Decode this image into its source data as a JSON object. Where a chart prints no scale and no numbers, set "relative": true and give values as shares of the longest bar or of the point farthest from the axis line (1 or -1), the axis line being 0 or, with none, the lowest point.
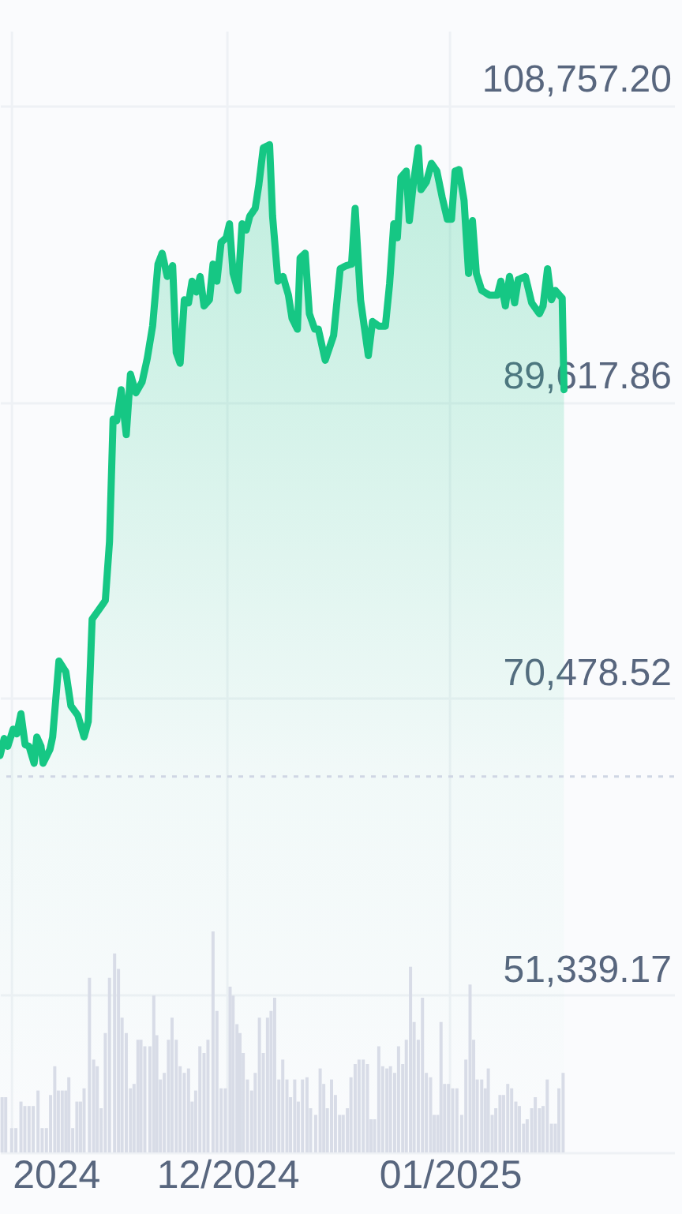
{
  "chart_data": [
    {
      "type": "area",
      "x": [
        "2024-10-30T08:00",
        "2024-10-30T22:00",
        "2024-10-31T10:00",
        "2024-11-01T04:00",
        "2024-11-01T16:00",
        "2024-11-02T06:00",
        "2024-11-02T20:00",
        "2024-11-03T09:00",
        "2024-11-04T02:00",
        "2024-11-04T11:00",
        "2024-11-05T01:00",
        "2024-11-05T08:00",
        "2024-11-06T07:00",
        "2024-11-06T16:00",
        "2024-11-07T13:00",
        "2024-11-08T12:00",
        "2024-11-09T05:00",
        "2024-11-10T04:00",
        "2024-11-11T01:00",
        "2024-11-11T15:00",
        "2024-11-12T04:00",
        "2024-11-13T06:00",
        "2024-11-14T00:00",
        "2024-11-14T14:00",
        "2024-11-15T02:00",
        "2024-11-15T14:00",
        "2024-11-16T05:00",
        "2024-11-16T22:00",
        "2024-11-17T12:00",
        "2024-11-18T06:00",
        "2024-11-19T03:00",
        "2024-11-19T20:00",
        "2024-11-20T14:00",
        "2024-11-21T08:00",
        "2024-11-21T22:00",
        "2024-11-22T15:00",
        "2024-11-23T09:00",
        "2024-11-23T21:00",
        "2024-11-24T10:00",
        "2024-11-25T00:00",
        "2024-11-25T14:00",
        "2024-11-26T02:00",
        "2024-11-26T16:00",
        "2024-11-27T05:00",
        "2024-11-27T18:00",
        "2024-11-28T12:00",
        "2024-11-29T00:00",
        "2024-11-29T13:00",
        "2024-11-30T03:00",
        "2024-11-30T20:00",
        "2024-12-01T07:00",
        "2024-12-01T19:00",
        "2024-12-02T11:00",
        "2024-12-03T01:00",
        "2024-12-03T15:00",
        "2024-12-04T03:00",
        "2024-12-04T21:00",
        "2024-12-05T09:00",
        "2024-12-06T00:00",
        "2024-12-06T21:00",
        "2024-12-07T07:00",
        "2024-12-08T01:00",
        "2024-12-08T18:00",
        "2024-12-09T12:00",
        "2024-12-10T00:00",
        "2024-12-10T18:00",
        "2024-12-11T03:00",
        "2024-12-11T20:00",
        "2024-12-12T10:00",
        "2024-12-13T04:00",
        "2024-12-13T16:00",
        "2024-12-14T15:00",
        "2024-12-15T19:00",
        "2024-12-16T17:00",
        "2024-12-17T13:00",
        "2024-12-18T07:00",
        "2024-12-18T19:00",
        "2024-12-19T13:00",
        "2024-12-20T15:00",
        "2024-12-21T05:00",
        "2024-12-22T02:00",
        "2024-12-23T00:00",
        "2024-12-23T14:00",
        "2024-12-24T04:00",
        "2024-12-24T16:00",
        "2024-12-25T04:00",
        "2024-12-25T22:00",
        "2024-12-26T08:00",
        "2024-12-26T21:00",
        "2024-12-27T14:00",
        "2024-12-27T23:00",
        "2024-12-28T17:00",
        "2024-12-29T10:00",
        "2024-12-30T04:00",
        "2024-12-30T22:00",
        "2024-12-31T15:00",
        "2025-01-01T05:00",
        "2025-01-01T17:00",
        "2025-01-02T06:00",
        "2025-01-02T23:00",
        "2025-01-03T14:00",
        "2025-01-04T03:00",
        "2025-01-04T16:00",
        "2025-01-05T10:00",
        "2025-01-06T12:00",
        "2025-01-07T14:00",
        "2025-01-08T02:00",
        "2025-01-08T17:00",
        "2025-01-09T07:00",
        "2025-01-10T00:00",
        "2025-01-10T12:00",
        "2025-01-11T12:00",
        "2025-01-12T09:00",
        "2025-01-13T11:00",
        "2025-01-13T23:00",
        "2025-01-14T14:00",
        "2025-01-15T03:00",
        "2025-01-15T16:00",
        "2025-01-16T15:00",
        "2025-01-16T21:00"
      ],
      "series": [
        {
          "color": "#16c784",
          "values": [
            66800,
            67900,
            67400,
            68500,
            68200,
            69500,
            67500,
            67400,
            66300,
            68000,
            67400,
            66300,
            67200,
            68000,
            72900,
            72200,
            70000,
            69400,
            68000,
            69000,
            75600,
            76300,
            76800,
            80600,
            88500,
            88400,
            90400,
            87500,
            91400,
            90200,
            90900,
            92400,
            94500,
            98500,
            99200,
            97700,
            98400,
            92800,
            92100,
            96200,
            96000,
            97400,
            96700,
            97700,
            95800,
            96200,
            98500,
            97400,
            99900,
            100200,
            101100,
            97900,
            96800,
            101100,
            100700,
            101600,
            102100,
            103600,
            106000,
            106200,
            101600,
            97400,
            97700,
            96500,
            95000,
            94300,
            98900,
            99200,
            95300,
            94300,
            94300,
            92300,
            93900,
            98200,
            98400,
            98500,
            102100,
            96200,
            92600,
            94800,
            94500,
            94500,
            97200,
            101100,
            100200,
            104100,
            104500,
            101300,
            103600,
            106000,
            103300,
            103800,
            105000,
            104500,
            102800,
            101400,
            101400,
            104500,
            104600,
            102600,
            97900,
            101300,
            97900,
            96800,
            96500,
            96500,
            97400,
            95800,
            97700,
            96000,
            97500,
            97700,
            96000,
            95300,
            95800,
            98200,
            96200,
            96800,
            96300,
            90400
          ]
        }
      ],
      "xlim": [
        "2024-10-30T08:00",
        "2025-02-01T05:00"
      ],
      "xticks": [
        {
          "value": "2024-11-01",
          "label": null
        },
        {
          "value": "2024-12-01",
          "label": null
        },
        {
          "value": "2025-01-01",
          "label": null
        }
      ],
      "ylim": [
        41200,
        113500
      ],
      "yticks": [
        {
          "value": 51339.17,
          "label": "51,339.17"
        },
        {
          "value": 70478.52,
          "label": "70,478.52"
        },
        {
          "value": 89617.86,
          "label": "89,617.86"
        },
        {
          "value": 108757.2,
          "label": "108,757.20"
        }
      ],
      "ref_lines": [
        {
          "axis": "y",
          "value": 65450,
          "color": "#cfd6e4",
          "line_style": "dotted"
        }
      ],
      "grid": true,
      "tick_labels": "y"
    },
    {
      "type": "bar",
      "relative": true,
      "x": [
        "2024-10-30T15:00",
        "2024-10-31T03:00",
        "2024-10-31T23:00",
        "2024-11-01T13:00",
        "2024-11-02T06:00",
        "2024-11-02T19:00",
        "2024-11-03T09:00",
        "2024-11-03T23:00",
        "2024-11-04T15:00",
        "2024-11-05T05:00",
        "2024-11-05T19:00",
        "2024-11-06T09:00",
        "2024-11-06T23:00",
        "2024-11-07T11:00",
        "2024-11-08T00:00",
        "2024-11-08T12:00",
        "2024-11-08T22:00",
        "2024-11-09T11:00",
        "2024-11-10T01:00",
        "2024-11-10T13:00",
        "2024-11-11T01:00",
        "2024-11-11T19:00",
        "2024-11-12T09:00",
        "2024-11-12T21:00",
        "2024-11-13T10:00",
        "2024-11-14T00:00",
        "2024-11-14T14:00",
        "2024-11-15T07:00",
        "2024-11-15T20:00",
        "2024-11-16T08:00",
        "2024-11-16T22:00",
        "2024-11-17T12:00",
        "2024-11-18T00:00",
        "2024-11-18T13:00",
        "2024-11-18T23:00",
        "2024-11-19T12:00",
        "2024-11-20T05:00",
        "2024-11-20T18:00",
        "2024-11-21T04:00",
        "2024-11-21T16:00",
        "2024-11-22T05:00",
        "2024-11-22T19:00",
        "2024-11-23T07:00",
        "2024-11-23T21:00",
        "2024-11-24T10:00",
        "2024-11-25T00:00",
        "2024-11-25T14:00",
        "2024-11-26T02:00",
        "2024-11-26T14:00",
        "2024-11-27T04:00",
        "2024-11-27T18:00",
        "2024-11-28T07:00",
        "2024-11-29T00:00",
        "2024-11-29T13:00",
        "2024-11-30T03:00",
        "2024-11-30T17:00",
        "2024-12-01T09:00",
        "2024-12-01T19:00",
        "2024-12-02T08:00",
        "2024-12-02T18:00",
        "2024-12-03T05:00",
        "2024-12-03T19:00",
        "2024-12-04T09:00",
        "2024-12-04T21:00",
        "2024-12-05T11:00",
        "2024-12-06T00:00",
        "2024-12-06T14:00",
        "2024-12-07T02:00",
        "2024-12-07T14:00",
        "2024-12-08T04:00",
        "2024-12-08T17:00",
        "2024-12-09T07:00",
        "2024-12-09T19:00",
        "2024-12-10T09:00",
        "2024-12-10T21:00",
        "2024-12-11T11:00",
        "2024-12-12T02:00",
        "2024-12-12T14:00",
        "2024-12-13T07:00",
        "2024-12-13T22:00",
        "2024-12-14T10:00",
        "2024-12-14T22:00",
        "2024-12-15T12:00",
        "2024-12-16T01:00",
        "2024-12-16T15:00",
        "2024-12-17T03:00",
        "2024-12-17T17:00",
        "2024-12-18T05:00",
        "2024-12-18T19:00",
        "2024-12-19T08:00",
        "2024-12-19T22:00",
        "2024-12-20T12:00",
        "2024-12-21T00:00",
        "2024-12-21T12:00",
        "2024-12-22T02:00",
        "2024-12-22T15:00",
        "2024-12-23T05:00",
        "2024-12-23T17:00",
        "2024-12-24T07:00",
        "2024-12-24T20:00",
        "2024-12-25T10:00",
        "2024-12-25T22:00",
        "2024-12-26T12:00",
        "2024-12-27T00:00",
        "2024-12-27T14:00",
        "2024-12-28T04:00",
        "2024-12-28T17:00",
        "2024-12-29T07:00",
        "2024-12-29T19:00",
        "2024-12-30T07:00",
        "2024-12-30T18:00",
        "2024-12-31T06:00",
        "2024-12-31T19:00",
        "2025-01-01T09:00",
        "2025-01-01T23:00",
        "2025-01-02T15:00",
        "2025-01-03T05:00",
        "2025-01-03T19:00",
        "2025-01-04T07:00",
        "2025-01-04T19:00",
        "2025-01-05T10:00",
        "2025-01-05T22:00",
        "2025-01-06T08:00",
        "2025-01-06T21:00",
        "2025-01-07T09:00",
        "2025-01-07T23:00",
        "2025-01-08T11:00",
        "2025-01-09T01:00",
        "2025-01-09T14:00",
        "2025-01-10T04:00",
        "2025-01-10T16:00",
        "2025-01-11T06:00",
        "2025-01-11T18:00",
        "2025-01-12T09:00",
        "2025-01-12T21:00",
        "2025-01-13T11:00",
        "2025-01-13T23:00",
        "2025-01-14T13:00",
        "2025-01-15T03:00",
        "2025-01-15T16:00",
        "2025-01-16T04:00",
        "2025-01-16T18:00"
      ],
      "series": [
        {
          "color": "#d8dce7",
          "values": [
            0.25,
            0.25,
            0.11,
            0.11,
            0.23,
            0.21,
            0.21,
            0.21,
            0.28,
            0.11,
            0.11,
            0.26,
            0.39,
            0.28,
            0.28,
            0.28,
            0.34,
            0.11,
            0.23,
            0.23,
            0.29,
            0.79,
            0.42,
            0.39,
            0.2,
            0.54,
            0.79,
            0.9,
            0.83,
            0.61,
            0.54,
            0.29,
            0.31,
            0.51,
            0.51,
            0.48,
            0.48,
            0.71,
            0.53,
            0.33,
            0.36,
            0.51,
            0.61,
            0.51,
            0.39,
            0.36,
            0.38,
            0.23,
            0.28,
            0.48,
            0.45,
            0.51,
            1,
            0.64,
            0.29,
            0.29,
            0.75,
            0.71,
            0.58,
            0.54,
            0.45,
            0.33,
            0.28,
            0.36,
            0.61,
            0.45,
            0.61,
            0.64,
            0.7,
            0.33,
            0.42,
            0.33,
            0.25,
            0.33,
            0.23,
            0.33,
            0.34,
            0.2,
            0.17,
            0.38,
            0.31,
            0.2,
            0.33,
            0.26,
            0.17,
            0.17,
            0.2,
            0.34,
            0.4,
            0.42,
            0.42,
            0.4,
            0.15,
            0.15,
            0.48,
            0.39,
            0.38,
            0.39,
            0.36,
            0.48,
            0.4,
            0.51,
            0.84,
            0.59,
            0.51,
            0.7,
            0.36,
            0.34,
            0.17,
            0.17,
            0.59,
            0.31,
            0.31,
            0.29,
            0.29,
            0.17,
            0.42,
            0.76,
            0.51,
            0.33,
            0.33,
            0.29,
            0.38,
            0.17,
            0.2,
            0.26,
            0.26,
            0.31,
            0.29,
            0.23,
            0.21,
            0.13,
            0.15,
            0.2,
            0.25,
            0.2,
            0.21,
            0.33,
            0.13,
            0.13,
            0.29,
            0.36
          ]
        }
      ],
      "xlim": [
        "2024-10-30T08:00",
        "2025-02-01T05:00"
      ],
      "xticks": [
        {
          "value": "2024-11-01",
          "label": "2024"
        },
        {
          "value": "2024-12-01",
          "label": "12/2024"
        },
        {
          "value": "2025-01-01",
          "label": "01/2025"
        }
      ],
      "tick_labels": "x"
    }
  ]
}
